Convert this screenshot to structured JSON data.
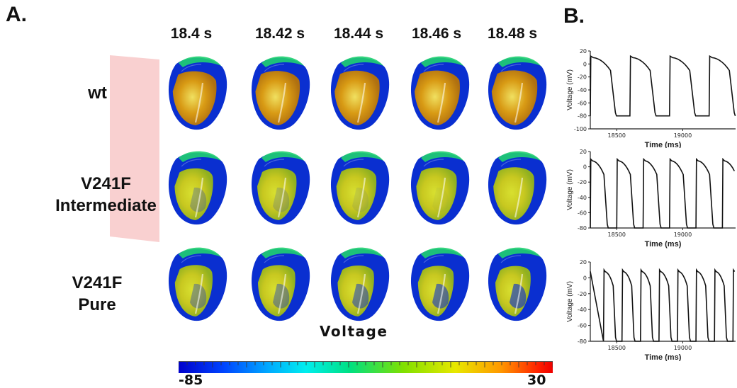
{
  "panel_a_label": "A.",
  "panel_b_label": "B.",
  "time_labels": [
    "18.4 s",
    "18.42 s",
    "18.44 s",
    "18.46 s",
    "18.48 s"
  ],
  "row_labels": [
    {
      "line1": "wt",
      "line2": ""
    },
    {
      "line1": "V241F",
      "line2": "Intermediate"
    },
    {
      "line1": "V241F",
      "line2": "Pure"
    }
  ],
  "colorbar": {
    "title": "Voltage",
    "min_label": "-85",
    "max_label": "30"
  },
  "colors": {
    "depolarized": "#d89a14",
    "resting": "#0a2fd0",
    "mid": "#1fd070",
    "highlight": "#f0e060",
    "pink_band": "#f8c8c8"
  },
  "chart_data": [
    {
      "type": "line",
      "xlabel": "Time (ms)",
      "ylabel": "Voltage (mV)",
      "xlim": [
        18300,
        19400
      ],
      "ylim": [
        -100,
        20
      ],
      "xticks": [
        18500,
        19000
      ],
      "yticks": [
        20,
        0,
        -20,
        -40,
        -60,
        -80,
        -100
      ],
      "cycle_length_ms": 300,
      "first_upstroke_ms": 18300,
      "plateau_mv": 10,
      "trough_mv": -80
    },
    {
      "type": "line",
      "xlabel": "Time (ms)",
      "ylabel": "Voltage (mV)",
      "xlim": [
        18300,
        19400
      ],
      "ylim": [
        -80,
        20
      ],
      "xticks": [
        18500,
        19000
      ],
      "yticks": [
        20,
        0,
        -20,
        -40,
        -60,
        -80
      ],
      "cycle_length_ms": 200,
      "first_upstroke_ms": 18300,
      "plateau_mv": 8,
      "trough_mv": -80
    },
    {
      "type": "line",
      "xlabel": "Time (ms)",
      "ylabel": "Voltage (mV)",
      "xlim": [
        18300,
        19400
      ],
      "ylim": [
        -80,
        20
      ],
      "xticks": [
        18500,
        19000
      ],
      "yticks": [
        20,
        0,
        -20,
        -40,
        -60,
        -80
      ],
      "cycle_length_ms": 140,
      "first_upstroke_ms": 18400,
      "plateau_mv": 8,
      "trough_mv": -80
    }
  ]
}
